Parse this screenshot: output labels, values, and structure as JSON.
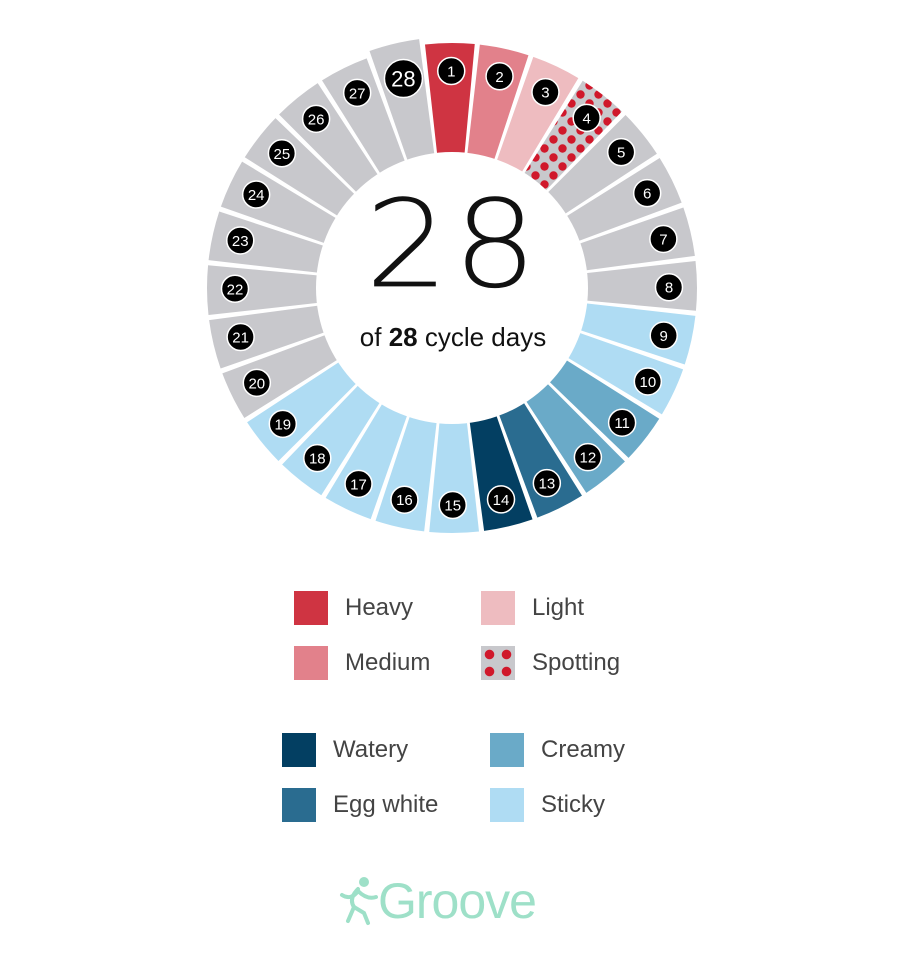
{
  "center": {
    "count": "28",
    "caption_prefix": "of",
    "caption_bold": "28",
    "caption_suffix": "cycle days"
  },
  "colors": {
    "heavy": "#cf3442",
    "medium": "#e2818b",
    "light": "#eebcc0",
    "spotting_base": "#c8c8cc",
    "spotting_dot": "#d0182b",
    "none": "#c8c8cc",
    "watery": "#033f62",
    "egg_white": "#2a6c90",
    "creamy": "#6aaac8",
    "sticky": "#afdcf3",
    "badge": "#000000",
    "brand": "#9ee0c8"
  },
  "days": [
    {
      "label": "1",
      "type": "heavy"
    },
    {
      "label": "2",
      "type": "medium"
    },
    {
      "label": "3",
      "type": "light"
    },
    {
      "label": "4",
      "type": "spotting"
    },
    {
      "label": "5",
      "type": "none"
    },
    {
      "label": "6",
      "type": "none"
    },
    {
      "label": "7",
      "type": "none"
    },
    {
      "label": "8",
      "type": "none"
    },
    {
      "label": "9",
      "type": "sticky"
    },
    {
      "label": "10",
      "type": "sticky"
    },
    {
      "label": "11",
      "type": "creamy"
    },
    {
      "label": "12",
      "type": "creamy"
    },
    {
      "label": "13",
      "type": "egg_white"
    },
    {
      "label": "14",
      "type": "watery"
    },
    {
      "label": "15",
      "type": "sticky"
    },
    {
      "label": "16",
      "type": "sticky"
    },
    {
      "label": "17",
      "type": "sticky"
    },
    {
      "label": "18",
      "type": "sticky"
    },
    {
      "label": "19",
      "type": "sticky"
    },
    {
      "label": "20",
      "type": "none"
    },
    {
      "label": "21",
      "type": "none"
    },
    {
      "label": "22",
      "type": "none"
    },
    {
      "label": "23",
      "type": "none"
    },
    {
      "label": "24",
      "type": "none"
    },
    {
      "label": "25",
      "type": "none"
    },
    {
      "label": "26",
      "type": "none"
    },
    {
      "label": "27",
      "type": "none"
    },
    {
      "label": "28",
      "type": "none",
      "current": true
    }
  ],
  "legend": {
    "flow": [
      {
        "label": "Heavy",
        "type": "heavy"
      },
      {
        "label": "Light",
        "type": "light"
      },
      {
        "label": "Medium",
        "type": "medium"
      },
      {
        "label": "Spotting",
        "type": "spotting"
      }
    ],
    "mucus": [
      {
        "label": "Watery",
        "type": "watery"
      },
      {
        "label": "Creamy",
        "type": "creamy"
      },
      {
        "label": "Egg white",
        "type": "egg_white"
      },
      {
        "label": "Sticky",
        "type": "sticky"
      }
    ]
  },
  "brand": {
    "name": "Groove",
    "icon": "running-figure-icon"
  }
}
